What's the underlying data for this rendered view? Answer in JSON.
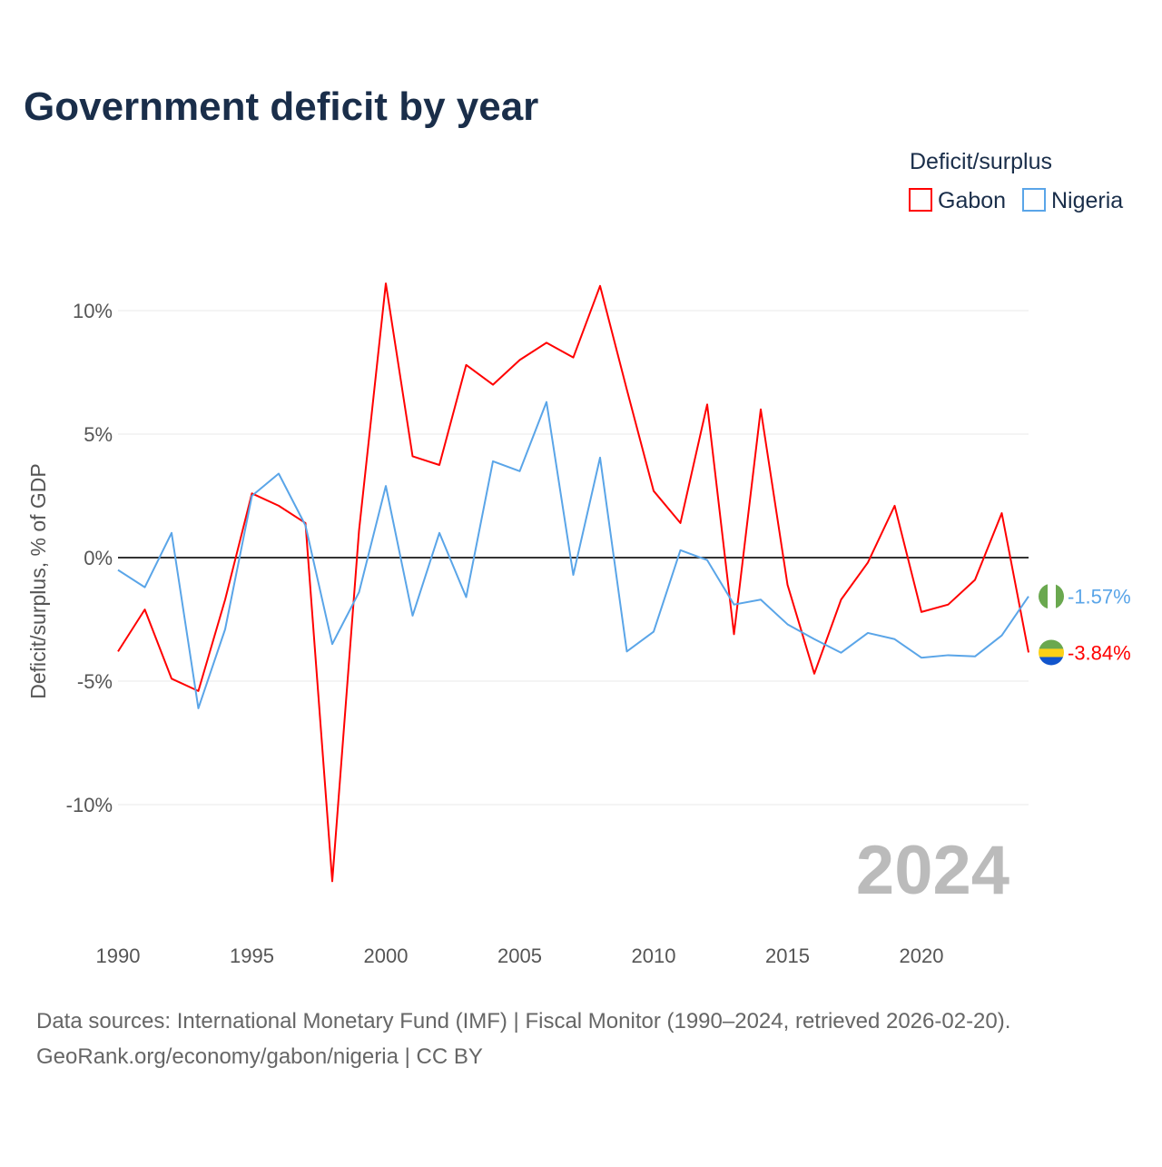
{
  "chart_data": {
    "type": "line",
    "title": "Government deficit by year",
    "ylabel": "Deficit/surplus, % of GDP",
    "xlabel": "",
    "ylim": [
      -14,
      12
    ],
    "xlim": [
      1990,
      2024
    ],
    "x_ticks": [
      1990,
      1995,
      2000,
      2005,
      2010,
      2015,
      2020
    ],
    "x_tick_labels": [
      "1990",
      "1995",
      "2000",
      "2005",
      "2010",
      "2015",
      "2020"
    ],
    "y_ticks": [
      10,
      5,
      0,
      -5,
      -10
    ],
    "y_tick_labels": [
      "10%",
      "5%",
      "0%",
      "-5%",
      "-10%"
    ],
    "grid": true,
    "legend": {
      "title": "Deficit/surplus",
      "placement": "top-right"
    },
    "year_label": "2024",
    "x": [
      1990,
      1991,
      1992,
      1993,
      1994,
      1995,
      1996,
      1997,
      1998,
      1999,
      2000,
      2001,
      2002,
      2003,
      2004,
      2005,
      2006,
      2007,
      2008,
      2009,
      2010,
      2011,
      2012,
      2013,
      2014,
      2015,
      2016,
      2017,
      2018,
      2019,
      2020,
      2021,
      2022,
      2023,
      2024
    ],
    "series": [
      {
        "name": "Gabon",
        "color": "#ff0000",
        "end_label": "-3.84%",
        "flag": "gabon-flag",
        "values": [
          -3.8,
          -2.1,
          -4.9,
          -5.4,
          -1.7,
          2.6,
          2.1,
          1.4,
          -13.1,
          1.1,
          11.1,
          4.1,
          3.75,
          7.8,
          7.0,
          8.0,
          8.7,
          8.1,
          11.0,
          6.8,
          2.7,
          1.4,
          6.2,
          -3.1,
          6.0,
          -1.1,
          -4.7,
          -1.7,
          -0.2,
          2.1,
          -2.2,
          -1.9,
          -0.9,
          1.8,
          -3.84
        ]
      },
      {
        "name": "Nigeria",
        "color": "#5aa5e8",
        "end_label": "-1.57%",
        "flag": "nigeria-flag",
        "values": [
          -0.5,
          -1.2,
          1.0,
          -6.1,
          -2.9,
          2.5,
          3.4,
          1.3,
          -3.5,
          -1.4,
          2.9,
          -2.35,
          1.0,
          -1.6,
          3.9,
          3.5,
          6.3,
          -0.7,
          4.05,
          -3.8,
          -3.0,
          0.3,
          -0.1,
          -1.9,
          -1.7,
          -2.7,
          -3.3,
          -3.85,
          -3.05,
          -3.3,
          -4.05,
          -3.95,
          -4.0,
          -3.15,
          -1.57
        ]
      }
    ]
  },
  "footer": {
    "line1": "Data sources: International Monetary Fund (IMF) | Fiscal Monitor (1990–2024, retrieved 2026-02-20).",
    "line2": "GeoRank.org/economy/gabon/nigeria | CC BY"
  }
}
